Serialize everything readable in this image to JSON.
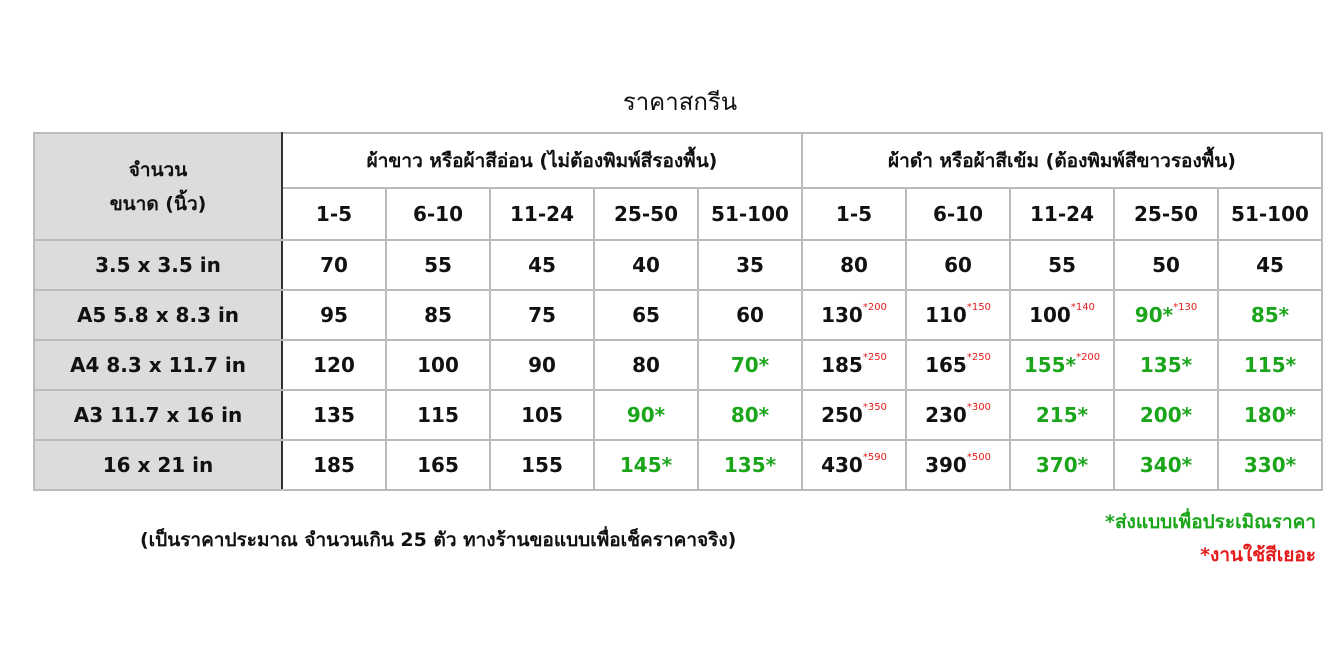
{
  "title": "ราคาสกรีน",
  "header": {
    "corner_line1": "จำนวน",
    "corner_line2": "ขนาด (นิ้ว)",
    "group_light": "ผ้าขาว หรือผ้าสีอ่อน (ไม่ต้องพิมพ์สีรองพื้น)",
    "group_dark": "ผ้าดำ หรือผ้าสีเข้ม (ต้องพิมพ์สีขาวรองพื้น)",
    "ranges": [
      "1-5",
      "6-10",
      "11-24",
      "25-50",
      "51-100",
      "1-5",
      "6-10",
      "11-24",
      "25-50",
      "51-100"
    ]
  },
  "rows": [
    {
      "size": "3.5 x 3.5 in",
      "cells": [
        {
          "value": "70"
        },
        {
          "value": "55"
        },
        {
          "value": "45"
        },
        {
          "value": "40"
        },
        {
          "value": "35"
        },
        {
          "value": "80"
        },
        {
          "value": "60"
        },
        {
          "value": "55"
        },
        {
          "value": "50"
        },
        {
          "value": "45"
        }
      ]
    },
    {
      "size": "A5 5.8 x 8.3 in",
      "cells": [
        {
          "value": "95"
        },
        {
          "value": "85"
        },
        {
          "value": "75"
        },
        {
          "value": "65"
        },
        {
          "value": "60"
        },
        {
          "value": "130",
          "extra": "*200"
        },
        {
          "value": "110",
          "extra": "*150"
        },
        {
          "value": "100",
          "extra": "*140"
        },
        {
          "value": "90*",
          "green": true,
          "extra": "*130"
        },
        {
          "value": "85*",
          "green": true
        }
      ]
    },
    {
      "size": "A4 8.3 x 11.7 in",
      "cells": [
        {
          "value": "120"
        },
        {
          "value": "100"
        },
        {
          "value": "90"
        },
        {
          "value": "80"
        },
        {
          "value": "70*",
          "green": true
        },
        {
          "value": "185",
          "extra": "*250"
        },
        {
          "value": "165",
          "extra": "*250"
        },
        {
          "value": "155*",
          "green": true,
          "extra": "*200"
        },
        {
          "value": "135*",
          "green": true
        },
        {
          "value": "115*",
          "green": true
        }
      ]
    },
    {
      "size": "A3 11.7 x 16 in",
      "cells": [
        {
          "value": "135"
        },
        {
          "value": "115"
        },
        {
          "value": "105"
        },
        {
          "value": "90*",
          "green": true
        },
        {
          "value": "80*",
          "green": true
        },
        {
          "value": "250",
          "extra": "*350"
        },
        {
          "value": "230",
          "extra": "*300"
        },
        {
          "value": "215*",
          "green": true
        },
        {
          "value": "200*",
          "green": true
        },
        {
          "value": "180*",
          "green": true
        }
      ]
    },
    {
      "size": "16 x 21 in",
      "cells": [
        {
          "value": "185"
        },
        {
          "value": "165"
        },
        {
          "value": "155"
        },
        {
          "value": "145*",
          "green": true
        },
        {
          "value": "135*",
          "green": true
        },
        {
          "value": "430",
          "extra": "*590"
        },
        {
          "value": "390",
          "extra": "*500"
        },
        {
          "value": "370*",
          "green": true
        },
        {
          "value": "340*",
          "green": true
        },
        {
          "value": "330*",
          "green": true
        }
      ]
    }
  ],
  "footnote": "(เป็นราคาประมาณ จำนวนเกิน 25 ตัว ทางร้านขอแบบเพื่อเช็คราคาจริง)",
  "legend_green": "*ส่งแบบเพื่อประเมิณราคา",
  "legend_red": "*งานใช้สีเยอะ",
  "colors": {
    "green": "#1aa51a",
    "red": "#e41b1b",
    "header_gray": "#dcdcdc"
  }
}
